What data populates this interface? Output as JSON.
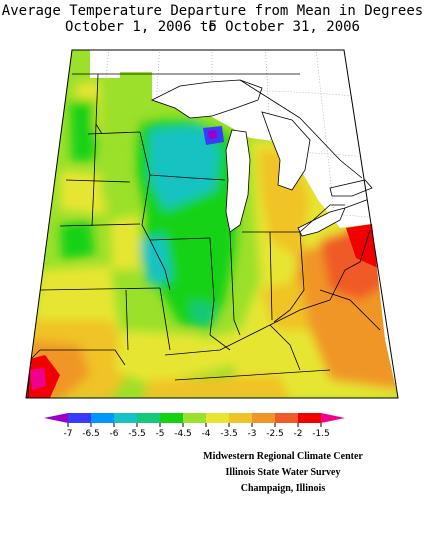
{
  "title_line1": "Average Temperature Departure from Mean in Degrees F",
  "title_line2": "October 1, 2006 to October 31, 2006",
  "legend": {
    "colors": [
      "#9b00c9",
      "#3a3aff",
      "#0096ff",
      "#19c2c2",
      "#16c878",
      "#12d212",
      "#9be02a",
      "#e6e632",
      "#f0c328",
      "#f09628",
      "#f05a28",
      "#f00000",
      "#f0008c"
    ],
    "tick_labels": [
      "-7",
      "-6.5",
      "-6",
      "-5.5",
      "-5",
      "-4.5",
      "-4",
      "-3.5",
      "-3",
      "-2.5",
      "-2",
      "-1.5"
    ]
  },
  "credits": {
    "line1": "Midwestern Regional Climate Center",
    "line2": "Illinois State Water Survey",
    "line3": "Champaign, Illinois"
  }
}
